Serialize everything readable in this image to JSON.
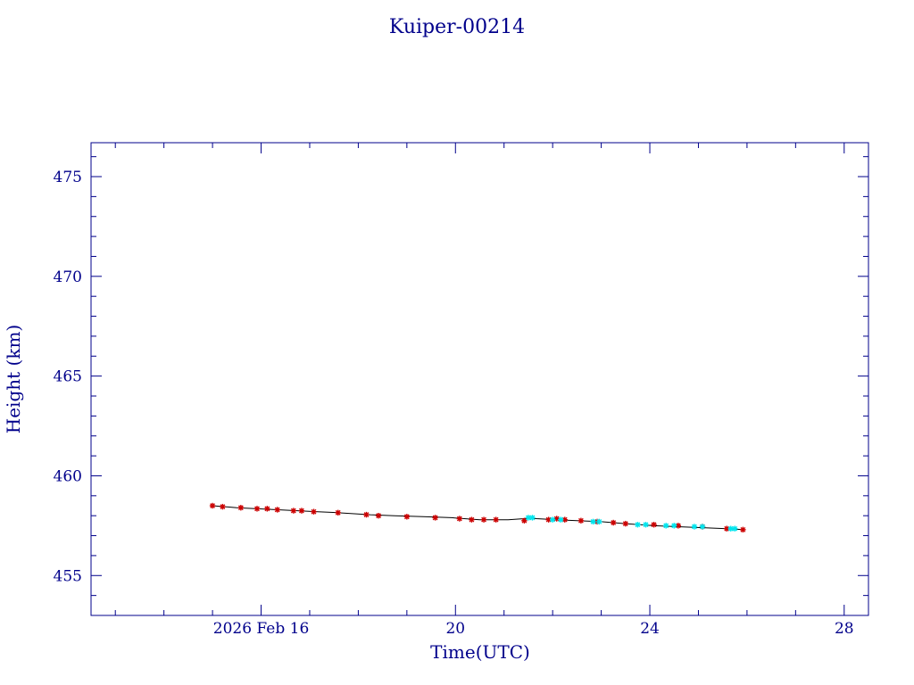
{
  "chart_data": {
    "type": "scatter",
    "title": "Kuiper-00214",
    "xlabel": "Time(UTC)",
    "ylabel": "Height (km)",
    "x_unit": "date (2026 Feb)",
    "xlim": [
      "2026-02-12T12:00",
      "2026-02-28T12:00"
    ],
    "ylim": [
      453,
      476.7
    ],
    "x_ticks": [
      {
        "value": "2026-02-16",
        "label": "2026 Feb 16"
      },
      {
        "value": "2026-02-20",
        "label": "20"
      },
      {
        "value": "2026-02-24",
        "label": "24"
      },
      {
        "value": "2026-02-28",
        "label": "28"
      }
    ],
    "y_ticks": [
      455,
      460,
      465,
      470,
      475
    ],
    "grid": false,
    "colors": {
      "axis": "#00008b",
      "line": "#000000",
      "series_red": "#cc0000",
      "series_cyan": "#00e5ee"
    },
    "line": {
      "x": [
        "2026-02-15T00:00",
        "2026-02-15T06:00",
        "2026-02-15T12:00",
        "2026-02-15T22:00",
        "2026-02-16T08:00",
        "2026-02-16T18:00",
        "2026-02-17T04:00",
        "2026-02-17T14:00",
        "2026-02-18T06:00",
        "2026-02-18T18:00",
        "2026-02-19T08:00",
        "2026-02-19T22:00",
        "2026-02-20T12:00",
        "2026-02-21T02:00",
        "2026-02-21T10:00",
        "2026-02-21T12:00",
        "2026-02-21T16:00",
        "2026-02-22T02:00",
        "2026-02-22T12:00",
        "2026-02-23T00:00",
        "2026-02-23T12:00",
        "2026-02-24T02:00",
        "2026-02-24T14:00",
        "2026-02-25T02:00",
        "2026-02-25T14:00",
        "2026-02-25T22:00"
      ],
      "y": [
        458.5,
        458.45,
        458.4,
        458.35,
        458.3,
        458.25,
        458.2,
        458.15,
        458.05,
        458.0,
        457.95,
        457.9,
        457.8,
        457.8,
        457.85,
        457.9,
        457.85,
        457.8,
        457.75,
        457.7,
        457.6,
        457.5,
        457.45,
        457.4,
        457.35,
        457.3
      ]
    },
    "series": [
      {
        "color": "red",
        "x": [
          "2026-02-15T00:00",
          "2026-02-15T05:00",
          "2026-02-15T14:00",
          "2026-02-15T22:00",
          "2026-02-16T03:00",
          "2026-02-16T08:00",
          "2026-02-16T16:00",
          "2026-02-16T20:00",
          "2026-02-17T02:00",
          "2026-02-17T14:00",
          "2026-02-18T04:00",
          "2026-02-18T10:00",
          "2026-02-19T00:00",
          "2026-02-19T14:00",
          "2026-02-20T02:00",
          "2026-02-20T08:00",
          "2026-02-20T14:00",
          "2026-02-20T20:00",
          "2026-02-21T10:00",
          "2026-02-21T22:00",
          "2026-02-22T02:00",
          "2026-02-22T06:00",
          "2026-02-22T14:00",
          "2026-02-22T22:00",
          "2026-02-23T06:00",
          "2026-02-23T12:00",
          "2026-02-24T02:00",
          "2026-02-24T14:00",
          "2026-02-25T02:00",
          "2026-02-25T14:00",
          "2026-02-25T22:00"
        ],
        "y": [
          458.5,
          458.45,
          458.4,
          458.35,
          458.35,
          458.3,
          458.25,
          458.25,
          458.2,
          458.15,
          458.05,
          458.0,
          457.95,
          457.9,
          457.85,
          457.8,
          457.8,
          457.8,
          457.75,
          457.8,
          457.85,
          457.8,
          457.75,
          457.7,
          457.65,
          457.6,
          457.55,
          457.5,
          457.45,
          457.35,
          457.3
        ]
      },
      {
        "color": "cyan",
        "x": [
          "2026-02-21T12:00",
          "2026-02-21T14:00",
          "2026-02-22T00:00",
          "2026-02-22T04:00",
          "2026-02-22T20:00",
          "2026-02-22T23:00",
          "2026-02-23T18:00",
          "2026-02-23T22:00",
          "2026-02-24T08:00",
          "2026-02-24T12:00",
          "2026-02-24T22:00",
          "2026-02-25T02:00",
          "2026-02-25T16:00",
          "2026-02-25T18:00"
        ],
        "y": [
          457.9,
          457.9,
          457.8,
          457.8,
          457.7,
          457.7,
          457.55,
          457.55,
          457.5,
          457.5,
          457.45,
          457.45,
          457.35,
          457.35
        ]
      }
    ]
  }
}
